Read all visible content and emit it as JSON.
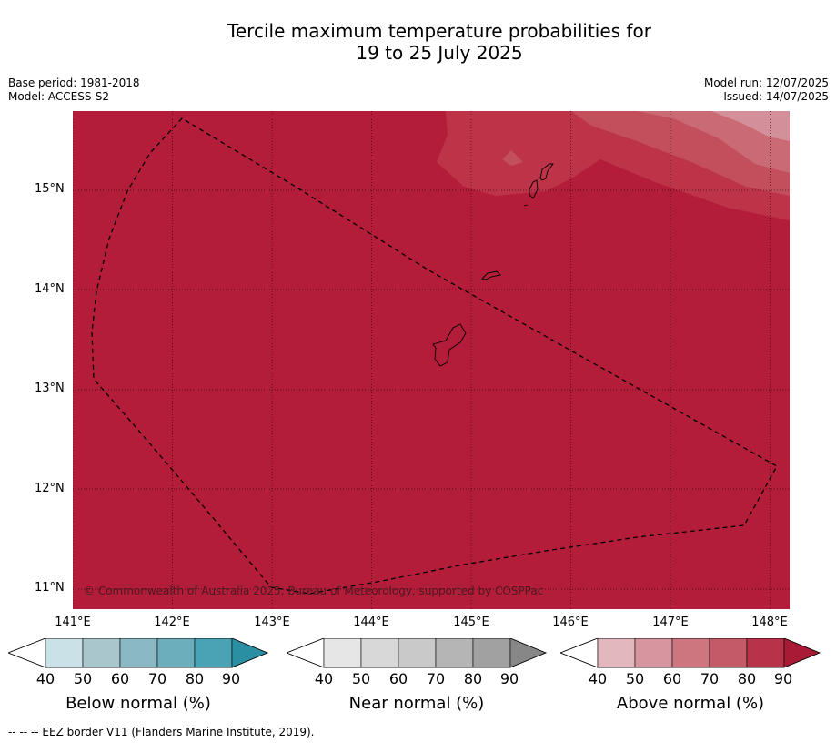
{
  "title": {
    "line1": "Tercile maximum temperature probabilities for",
    "line2": "19 to 25 July 2025"
  },
  "meta": {
    "base_period": "Base period: 1981-2018",
    "model": "Model: ACCESS-S2",
    "model_run": "Model run: 12/07/2025",
    "issued": "Issued: 14/07/2025"
  },
  "map": {
    "lat_labels": [
      "15°N",
      "14°N",
      "13°N",
      "12°N",
      "11°N"
    ],
    "lon_labels": [
      "141°E",
      "142°E",
      "143°E",
      "144°E",
      "145°E",
      "146°E",
      "147°E",
      "148°E"
    ],
    "copyright": "© Commonwealth of Australia 2025, Bureau of Meteorology, supported by COSPPac",
    "base_color": "#b31d3a"
  },
  "colorbars": [
    {
      "title": "Below normal (%)",
      "ticks": [
        "40",
        "50",
        "60",
        "70",
        "80",
        "90"
      ],
      "colors": [
        "#ffffff",
        "#c9e1e7",
        "#a8c6cc",
        "#8ab8c3",
        "#6daebd",
        "#4aa3b4",
        "#2a8fa3"
      ]
    },
    {
      "title": "Near normal (%)",
      "ticks": [
        "40",
        "50",
        "60",
        "70",
        "80",
        "90"
      ],
      "colors": [
        "#ffffff",
        "#e6e6e6",
        "#d8d8d8",
        "#c9c9c9",
        "#b5b5b5",
        "#a1a1a1",
        "#878787"
      ]
    },
    {
      "title": "Above normal (%)",
      "ticks": [
        "40",
        "50",
        "60",
        "70",
        "80",
        "90"
      ],
      "colors": [
        "#ffffff",
        "#e2b8be",
        "#d6969f",
        "#cd767f",
        "#c45967",
        "#b8334a",
        "#a81a35"
      ]
    }
  ],
  "footer": "--  --  -- EEZ border V11 (Flanders Marine Institute, 2019)."
}
